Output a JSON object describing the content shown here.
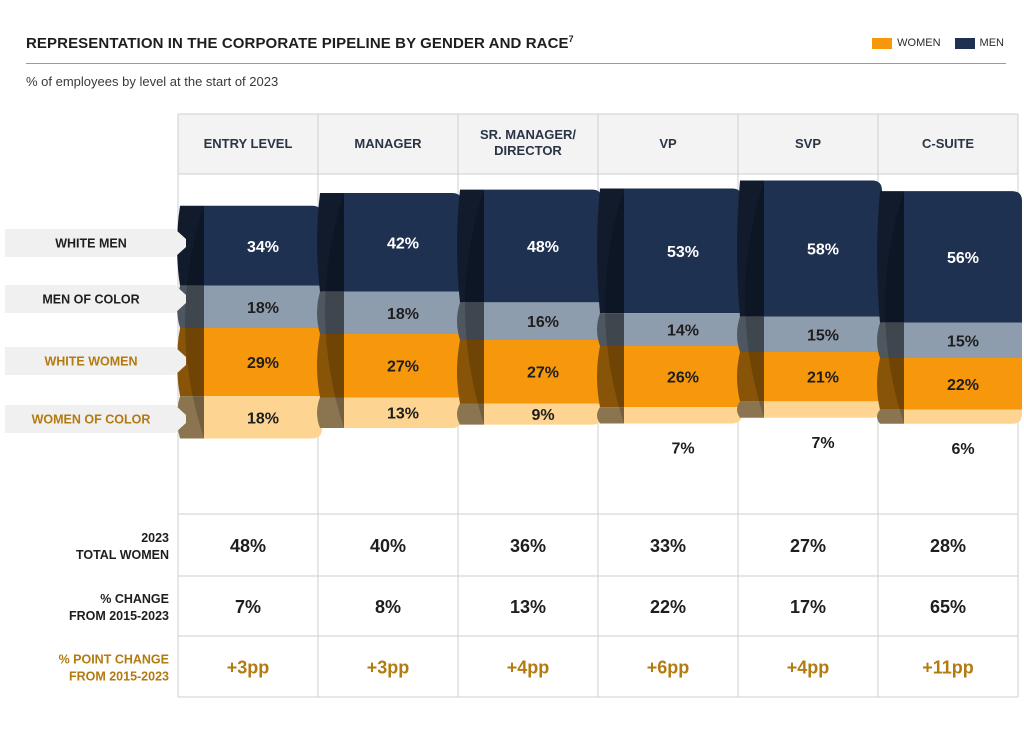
{
  "header": {
    "title": "REPRESENTATION IN THE CORPORATE PIPELINE BY GENDER AND RACE",
    "footnote": "7",
    "subtitle": "% of employees by level at the start of 2023"
  },
  "legend": {
    "women": "WOMEN",
    "men": "MEN"
  },
  "colors": {
    "white_men": "#1f3150",
    "men_of_color": "#8e9dae",
    "white_women": "#f7980c",
    "women_of_color": "#fdd491",
    "gold_text": "#b37a10"
  },
  "chart_data": {
    "type": "bar",
    "title": "REPRESENTATION IN THE CORPORATE PIPELINE BY GENDER AND RACE",
    "subtitle": "% of employees by level at the start of 2023",
    "categories": [
      "ENTRY LEVEL",
      "MANAGER",
      "SR. MANAGER/ DIRECTOR",
      "VP",
      "SVP",
      "C-SUITE"
    ],
    "series": [
      {
        "name": "WHITE MEN",
        "values": [
          34,
          42,
          48,
          53,
          58,
          56
        ],
        "labels": [
          "34%",
          "42%",
          "48%",
          "53%",
          "58%",
          "56%"
        ]
      },
      {
        "name": "MEN OF COLOR",
        "values": [
          18,
          18,
          16,
          14,
          15,
          15
        ],
        "labels": [
          "18%",
          "18%",
          "16%",
          "14%",
          "15%",
          "15%"
        ]
      },
      {
        "name": "WHITE WOMEN",
        "values": [
          29,
          27,
          27,
          26,
          21,
          22
        ],
        "labels": [
          "29%",
          "27%",
          "27%",
          "26%",
          "21%",
          "22%"
        ]
      },
      {
        "name": "WOMEN OF COLOR",
        "values": [
          18,
          13,
          9,
          7,
          7,
          6
        ],
        "labels": [
          "18%",
          "13%",
          "9%",
          "7%",
          "7%",
          "6%"
        ]
      }
    ],
    "stacked": true,
    "xlabel": "",
    "ylabel": "",
    "table": [
      {
        "label_lines": [
          "2023",
          "TOTAL WOMEN"
        ],
        "style": "dark",
        "values": [
          "48%",
          "40%",
          "36%",
          "33%",
          "27%",
          "28%"
        ]
      },
      {
        "label_lines": [
          "% CHANGE",
          "FROM 2015-2023"
        ],
        "style": "dark",
        "values": [
          "7%",
          "8%",
          "13%",
          "22%",
          "17%",
          "65%"
        ]
      },
      {
        "label_lines": [
          "% POINT CHANGE",
          "FROM 2015-2023"
        ],
        "style": "gold",
        "values": [
          "+3pp",
          "+3pp",
          "+4pp",
          "+6pp",
          "+4pp",
          "+11pp"
        ]
      }
    ]
  }
}
